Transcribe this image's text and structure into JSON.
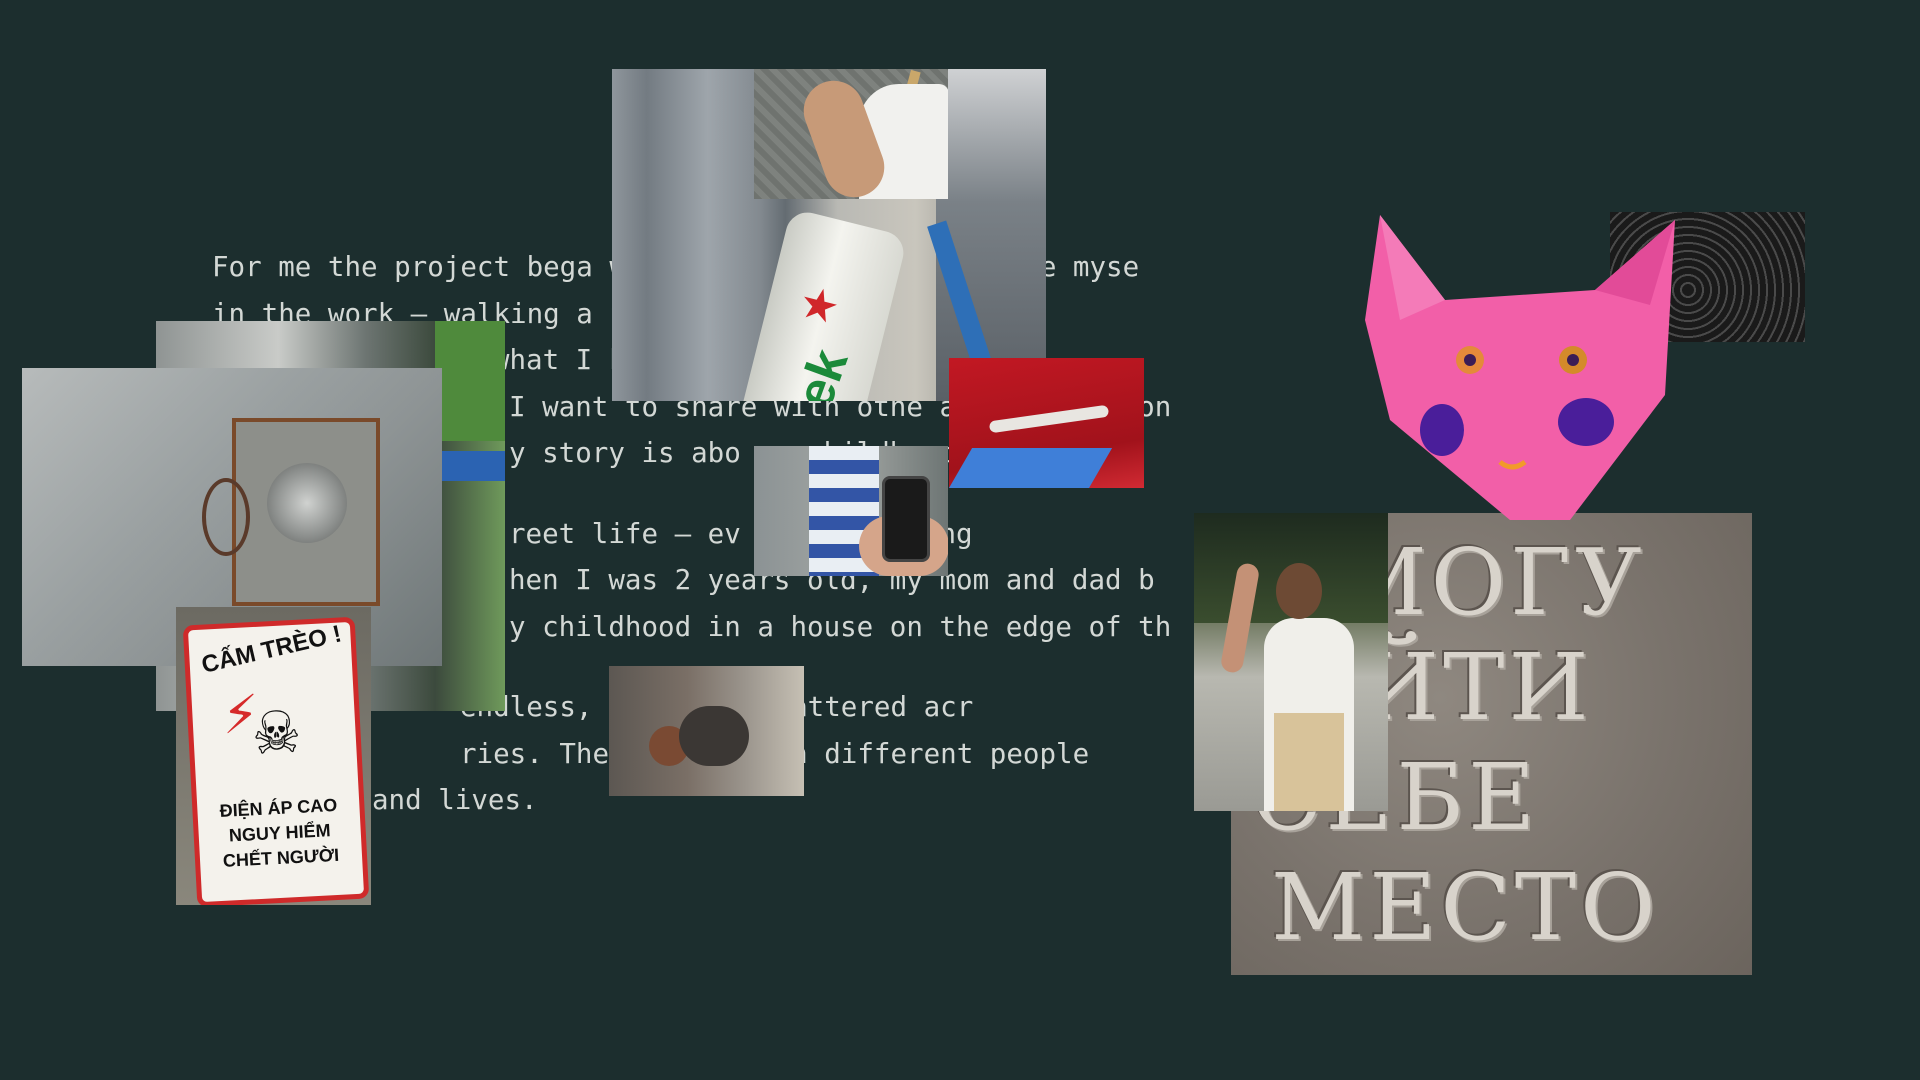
{
  "essay": {
    "paragraph1": [
      "For me the project bega         where I was able to immerse myse",
      "in the work — walking a         for references, ma",
      "reets,                          what I know and d",
      "I want to share with othe       a conversation",
      "y story is abo          my childhood i"
    ],
    "paragraph2": [
      "reet life — ev          still playing",
      "hen I was 2 years old, my mom and dad b",
      "y childhood in a house on the edge of th"
    ],
    "paragraph3": [
      "endless,          ends are scattered acr",
      "ries. The pill         hrough different people",
      "and lives."
    ]
  },
  "photos": {
    "pole": {
      "brand_text": "nek"
    },
    "sign": {
      "top_text": "CẤM TRÈO !",
      "lines": [
        "ĐIỆN ÁP CAO",
        "NGUY HIỂM",
        "CHẾT NGƯỜI"
      ]
    },
    "stone": {
      "lines": [
        "Я МОГУ",
        "НАЙТИ",
        "СЕБЕ",
        "МЕСТО"
      ]
    }
  },
  "colors": {
    "background": "#1c2e2e",
    "text": "#d3d8d5",
    "cat_pink": "#f25fa8",
    "warning_red": "#d62a2a"
  }
}
